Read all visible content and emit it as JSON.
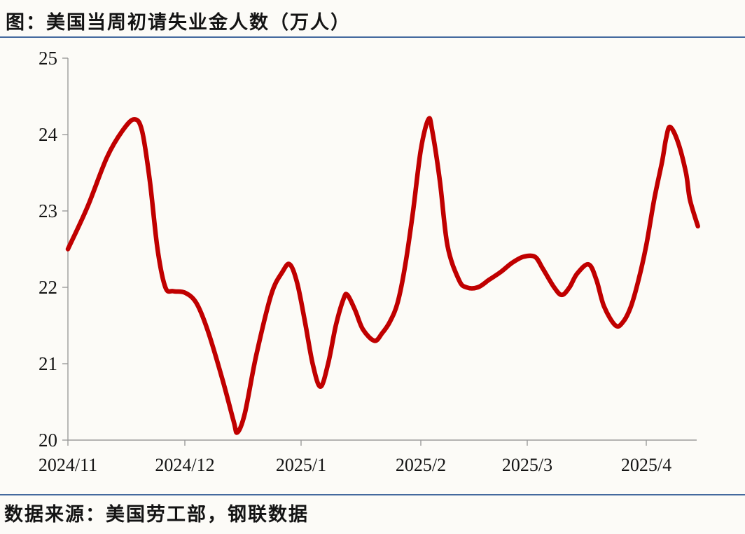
{
  "figure": {
    "title": "图：美国当周初请失业金人数（万人）",
    "source": "数据来源：美国劳工部，钢联数据"
  },
  "colors": {
    "line": "#c00000",
    "divider_rule": "#44699e",
    "axis": "#9b9b9b",
    "text": "#141414",
    "background": "#fcfbf7"
  },
  "chart_data": {
    "type": "line",
    "title": "美国当周初请失业金人数（万人）",
    "ylabel": "万人",
    "ylim": [
      20,
      25
    ],
    "grid": false,
    "legend_position": "none",
    "y_ticks": [
      "25",
      "24",
      "23",
      "22",
      "21",
      "20"
    ],
    "x_ticks": [
      "2024/11",
      "2024/12",
      "2025/1",
      "2025/2",
      "2025/3",
      "2025/4"
    ],
    "series": [
      {
        "name": "美国当周初请失业金人数",
        "color": "#c00000",
        "points": [
          {
            "d": "2024-11-01",
            "v": 22.5
          },
          {
            "d": "2024-11-06",
            "v": 23.05
          },
          {
            "d": "2024-11-11",
            "v": 23.7
          },
          {
            "d": "2024-11-15",
            "v": 24.05
          },
          {
            "d": "2024-11-18",
            "v": 24.2
          },
          {
            "d": "2024-11-20",
            "v": 24.05
          },
          {
            "d": "2024-11-22",
            "v": 23.4
          },
          {
            "d": "2024-11-24",
            "v": 22.5
          },
          {
            "d": "2024-11-26",
            "v": 22.0
          },
          {
            "d": "2024-11-28",
            "v": 21.95
          },
          {
            "d": "2024-12-01",
            "v": 21.93
          },
          {
            "d": "2024-12-04",
            "v": 21.8
          },
          {
            "d": "2024-12-07",
            "v": 21.45
          },
          {
            "d": "2024-12-11",
            "v": 20.8
          },
          {
            "d": "2024-12-14",
            "v": 20.25
          },
          {
            "d": "2024-12-15",
            "v": 20.1
          },
          {
            "d": "2024-12-17",
            "v": 20.35
          },
          {
            "d": "2024-12-20",
            "v": 21.1
          },
          {
            "d": "2024-12-24",
            "v": 21.9
          },
          {
            "d": "2024-12-27",
            "v": 22.2
          },
          {
            "d": "2024-12-29",
            "v": 22.3
          },
          {
            "d": "2024-12-31",
            "v": 22.05
          },
          {
            "d": "2025-01-02",
            "v": 21.55
          },
          {
            "d": "2025-01-04",
            "v": 21.0
          },
          {
            "d": "2025-01-06",
            "v": 20.7
          },
          {
            "d": "2025-01-08",
            "v": 21.0
          },
          {
            "d": "2025-01-10",
            "v": 21.5
          },
          {
            "d": "2025-01-12",
            "v": 21.85
          },
          {
            "d": "2025-01-13",
            "v": 21.9
          },
          {
            "d": "2025-01-15",
            "v": 21.7
          },
          {
            "d": "2025-01-17",
            "v": 21.45
          },
          {
            "d": "2025-01-20",
            "v": 21.3
          },
          {
            "d": "2025-01-22",
            "v": 21.4
          },
          {
            "d": "2025-01-24",
            "v": 21.55
          },
          {
            "d": "2025-01-26",
            "v": 21.8
          },
          {
            "d": "2025-01-28",
            "v": 22.3
          },
          {
            "d": "2025-01-30",
            "v": 23.0
          },
          {
            "d": "2025-02-01",
            "v": 23.8
          },
          {
            "d": "2025-02-03",
            "v": 24.2
          },
          {
            "d": "2025-02-04",
            "v": 24.05
          },
          {
            "d": "2025-02-06",
            "v": 23.4
          },
          {
            "d": "2025-02-08",
            "v": 22.55
          },
          {
            "d": "2025-02-11",
            "v": 22.1
          },
          {
            "d": "2025-02-13",
            "v": 22.0
          },
          {
            "d": "2025-02-16",
            "v": 22.0
          },
          {
            "d": "2025-02-19",
            "v": 22.1
          },
          {
            "d": "2025-02-22",
            "v": 22.2
          },
          {
            "d": "2025-02-25",
            "v": 22.32
          },
          {
            "d": "2025-02-28",
            "v": 22.4
          },
          {
            "d": "2025-03-03",
            "v": 22.4
          },
          {
            "d": "2025-03-05",
            "v": 22.25
          },
          {
            "d": "2025-03-08",
            "v": 22.0
          },
          {
            "d": "2025-03-10",
            "v": 21.9
          },
          {
            "d": "2025-03-12",
            "v": 22.0
          },
          {
            "d": "2025-03-14",
            "v": 22.18
          },
          {
            "d": "2025-03-17",
            "v": 22.3
          },
          {
            "d": "2025-03-19",
            "v": 22.1
          },
          {
            "d": "2025-03-21",
            "v": 21.75
          },
          {
            "d": "2025-03-24",
            "v": 21.5
          },
          {
            "d": "2025-03-26",
            "v": 21.55
          },
          {
            "d": "2025-03-28",
            "v": 21.75
          },
          {
            "d": "2025-03-30",
            "v": 22.1
          },
          {
            "d": "2025-04-01",
            "v": 22.55
          },
          {
            "d": "2025-04-03",
            "v": 23.15
          },
          {
            "d": "2025-04-05",
            "v": 23.65
          },
          {
            "d": "2025-04-06",
            "v": 23.95
          },
          {
            "d": "2025-04-07",
            "v": 24.1
          },
          {
            "d": "2025-04-09",
            "v": 23.9
          },
          {
            "d": "2025-04-11",
            "v": 23.5
          },
          {
            "d": "2025-04-12",
            "v": 23.15
          },
          {
            "d": "2025-04-14",
            "v": 22.8
          }
        ]
      }
    ]
  }
}
